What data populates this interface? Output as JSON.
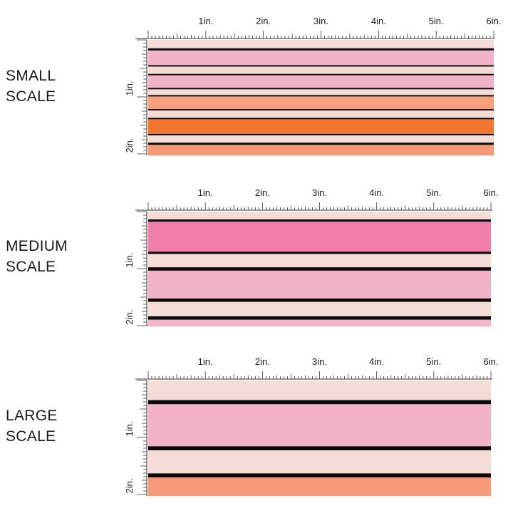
{
  "colors": {
    "black": "#0a0a0a",
    "pale_pink": "#f5dcd6",
    "light_pink": "#f2b3c9",
    "hot_pink": "#f07fa9",
    "peach": "#f7a27c",
    "orange": "#f27630",
    "salmon": "#f49a78"
  },
  "ruler": {
    "x_labels": [
      "1in.",
      "2in.",
      "3in.",
      "4in.",
      "5in.",
      "6in."
    ],
    "y_labels": [
      "1in.",
      "2in."
    ]
  },
  "scales": [
    {
      "id": "small",
      "label_line1": "SMALL",
      "label_line2": "SCALE",
      "stripes": [
        {
          "color": "pale_pink",
          "fraction": 0.08
        },
        {
          "color": "black",
          "fraction": 0.02
        },
        {
          "color": "light_pink",
          "fraction": 0.14
        },
        {
          "color": "black",
          "fraction": 0.013
        },
        {
          "color": "pale_pink",
          "fraction": 0.07
        },
        {
          "color": "black",
          "fraction": 0.013
        },
        {
          "color": "light_pink",
          "fraction": 0.12
        },
        {
          "color": "black",
          "fraction": 0.013
        },
        {
          "color": "pale_pink",
          "fraction": 0.055
        },
        {
          "color": "black",
          "fraction": 0.013
        },
        {
          "color": "peach",
          "fraction": 0.12
        },
        {
          "color": "black",
          "fraction": 0.013
        },
        {
          "color": "pale_pink",
          "fraction": 0.07
        },
        {
          "color": "black",
          "fraction": 0.013
        },
        {
          "color": "orange",
          "fraction": 0.14
        },
        {
          "color": "black",
          "fraction": 0.013
        },
        {
          "color": "pale_pink",
          "fraction": 0.07
        },
        {
          "color": "black",
          "fraction": 0.02
        },
        {
          "color": "salmon",
          "fraction": 0.1
        }
      ]
    },
    {
      "id": "medium",
      "label_line1": "MEDIUM",
      "label_line2": "SCALE",
      "stripes": [
        {
          "color": "pale_pink",
          "fraction": 0.07
        },
        {
          "color": "black",
          "fraction": 0.02
        },
        {
          "color": "hot_pink",
          "fraction": 0.27
        },
        {
          "color": "black",
          "fraction": 0.02
        },
        {
          "color": "pale_pink",
          "fraction": 0.12
        },
        {
          "color": "black",
          "fraction": 0.03
        },
        {
          "color": "light_pink",
          "fraction": 0.25
        },
        {
          "color": "black",
          "fraction": 0.03
        },
        {
          "color": "pale_pink",
          "fraction": 0.13
        },
        {
          "color": "black",
          "fraction": 0.03
        },
        {
          "color": "light_pink",
          "fraction": 0.06
        }
      ]
    },
    {
      "id": "large",
      "label_line1": "LARGE",
      "label_line2": "SCALE",
      "stripes": [
        {
          "color": "pale_pink",
          "fraction": 0.17
        },
        {
          "color": "black",
          "fraction": 0.035
        },
        {
          "color": "light_pink",
          "fraction": 0.365
        },
        {
          "color": "black",
          "fraction": 0.035
        },
        {
          "color": "pale_pink",
          "fraction": 0.2
        },
        {
          "color": "black",
          "fraction": 0.035
        },
        {
          "color": "salmon",
          "fraction": 0.16
        }
      ]
    }
  ]
}
